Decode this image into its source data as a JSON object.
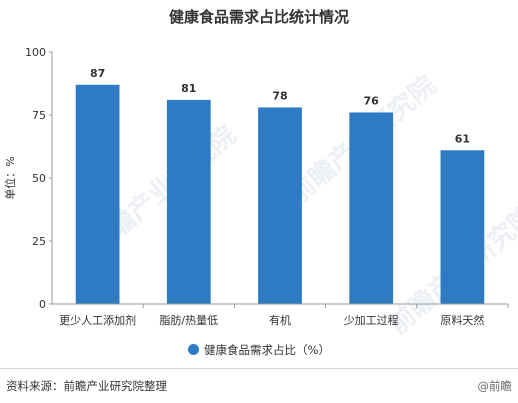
{
  "title": "健康食品需求占比统计情况",
  "watermark": "前瞻产业研究院",
  "source": "资料来源：前瞻产业研究院整理",
  "brand": "@前瞻",
  "colors": {
    "bar": "#2e7bc4",
    "axis": "#999999",
    "grid": "#e6e6e6",
    "text": "#333333"
  },
  "chart_data": {
    "type": "bar",
    "title": "健康食品需求占比统计情况",
    "categories": [
      "更少人工添加剂",
      "脂肪/热量低",
      "有机",
      "少加工过程",
      "原料天然"
    ],
    "series": [
      {
        "name": "健康食品需求占比（%）",
        "values": [
          87,
          81,
          78,
          76,
          61
        ]
      }
    ],
    "ylabel": "单位：%",
    "xlabel": "",
    "ylim": [
      0,
      100
    ],
    "yticks": [
      0,
      25,
      50,
      75,
      100
    ],
    "grid": false,
    "legend": "bottom",
    "data_labels": true
  }
}
